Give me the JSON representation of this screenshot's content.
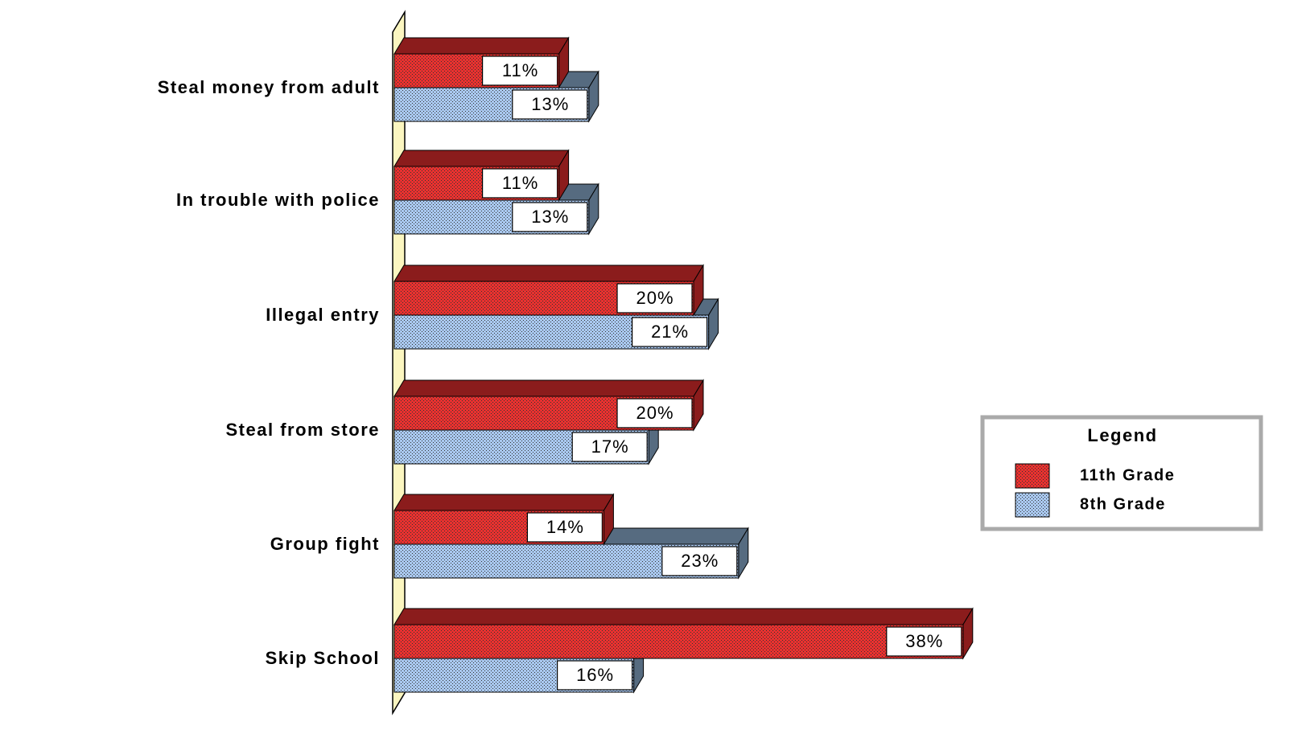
{
  "chart_data": {
    "type": "bar",
    "orientation": "horizontal",
    "categories": [
      "Steal money from adult",
      "In trouble with police",
      "Illegal entry",
      "Steal from store",
      "Group fight",
      "Skip School"
    ],
    "series": [
      {
        "name": "11th Grade",
        "color": "#e8312f",
        "values": [
          11,
          11,
          20,
          20,
          14,
          38
        ],
        "value_labels": [
          "11%",
          "11%",
          "20%",
          "20%",
          "14%",
          "38%"
        ]
      },
      {
        "name": "8th Grade",
        "color": "#a9c8ef",
        "values": [
          13,
          13,
          21,
          17,
          23,
          16
        ],
        "value_labels": [
          "13%",
          "13%",
          "21%",
          "17%",
          "23%",
          "16%"
        ]
      }
    ],
    "legend_title": "Legend"
  }
}
